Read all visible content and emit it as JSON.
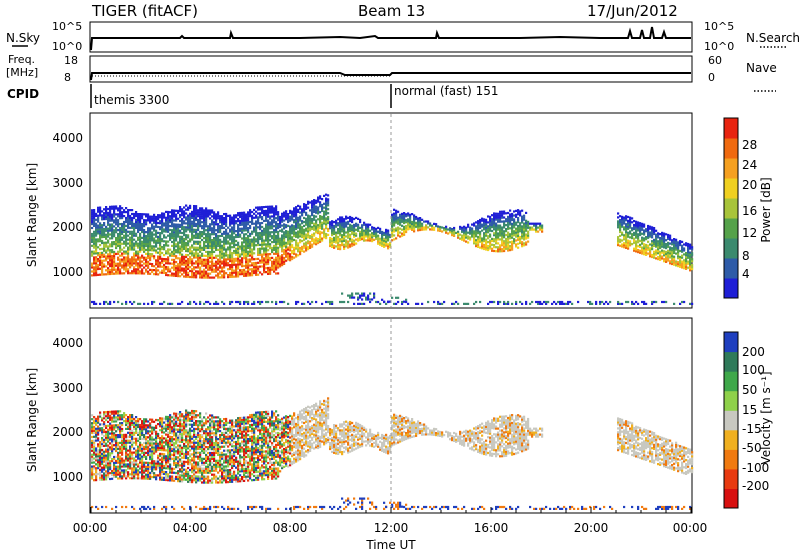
{
  "header": {
    "radar": "TIGER (fitACF)",
    "beam": "Beam 13",
    "date": "17/Jun/2012"
  },
  "status_panels": {
    "nsky_label": "N.Sky",
    "nsearch_label": "N.Search",
    "freq_label_1": "Freq.",
    "freq_label_2": "[MHz]",
    "nave_label": "Nave",
    "cpid_label": "CPID",
    "nsky_ticks": [
      "10^5",
      "10^0"
    ],
    "nsearch_ticks": [
      "10^5",
      "10^0"
    ],
    "freq_ticks": [
      "18",
      "8"
    ],
    "nave_ticks": [
      "60",
      "0"
    ],
    "cpid_segments": [
      {
        "label": "themis 3300",
        "start": "00:00",
        "end": "12:00"
      },
      {
        "label": "normal (fast) 151",
        "start": "12:00",
        "end": "24:00"
      }
    ]
  },
  "chart_data": [
    {
      "type": "heatmap",
      "title": "",
      "xlabel": "Time UT",
      "ylabel": "Slant Range [km]",
      "x_ticks": [
        "00:00",
        "04:00",
        "08:00",
        "12:00",
        "16:00",
        "20:00",
        "00:00"
      ],
      "y_ticks": [
        "1000",
        "2000",
        "3000",
        "4000"
      ],
      "ylim": [
        200,
        4600
      ],
      "colorbar": {
        "label": "Power [dB]",
        "ticks": [
          "28",
          "24",
          "20",
          "16",
          "12",
          "8",
          "4"
        ],
        "colors": [
          "#1f1fd6",
          "#2e5ba8",
          "#3b8a6e",
          "#55a24a",
          "#a8c43a",
          "#f0d020",
          "#f5a020",
          "#f06a10",
          "#e82410"
        ]
      }
    },
    {
      "type": "heatmap",
      "title": "",
      "xlabel": "Time UT",
      "ylabel": "Slant Range [km]",
      "x_ticks": [
        "00:00",
        "04:00",
        "08:00",
        "12:00",
        "16:00",
        "20:00",
        "00:00"
      ],
      "y_ticks": [
        "1000",
        "2000",
        "3000",
        "4000"
      ],
      "ylim": [
        200,
        4600
      ],
      "colorbar": {
        "label": "Velocity [m s⁻¹]",
        "ticks": [
          "200",
          "100",
          "50",
          "15",
          "-15",
          "-50",
          "-100",
          "-200"
        ],
        "colors": [
          "#1f3fbf",
          "#2f7a5a",
          "#3fa84a",
          "#8fd14a",
          "#c8c8c0",
          "#f0b020",
          "#f07a10",
          "#e83a10",
          "#d81010"
        ]
      }
    }
  ]
}
